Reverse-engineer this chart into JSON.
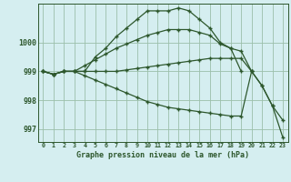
{
  "title": "Graphe pression niveau de la mer (hPa)",
  "bg_color": "#d5eef0",
  "line_color": "#2d572c",
  "grid_color": "#9bbfaa",
  "xlim": [
    -0.5,
    23.5
  ],
  "ylim": [
    996.55,
    1001.35
  ],
  "yticks": [
    997,
    998,
    999,
    1000
  ],
  "xticks": [
    0,
    1,
    2,
    3,
    4,
    5,
    6,
    7,
    8,
    9,
    10,
    11,
    12,
    13,
    14,
    15,
    16,
    17,
    18,
    19,
    20,
    21,
    22,
    23
  ],
  "series": [
    [
      999.0,
      998.9,
      999.0,
      999.0,
      999.0,
      999.5,
      999.8,
      1000.2,
      1000.5,
      1000.8,
      1001.1,
      1001.1,
      1001.1,
      1001.2,
      1001.1,
      1000.8,
      1000.5,
      1000.0,
      999.8,
      999.0,
      null,
      null,
      null,
      null
    ],
    [
      999.0,
      998.9,
      999.0,
      999.0,
      999.2,
      999.4,
      999.6,
      999.8,
      999.95,
      1000.1,
      1000.25,
      1000.35,
      1000.45,
      1000.45,
      1000.45,
      1000.35,
      1000.25,
      999.95,
      999.8,
      999.7,
      999.0,
      null,
      null,
      null
    ],
    [
      999.0,
      998.9,
      999.0,
      999.0,
      999.0,
      999.0,
      999.0,
      999.0,
      999.05,
      999.1,
      999.15,
      999.2,
      999.25,
      999.3,
      999.35,
      999.4,
      999.45,
      999.45,
      999.45,
      999.45,
      999.0,
      998.5,
      997.8,
      997.3
    ],
    [
      999.0,
      998.9,
      999.0,
      999.0,
      998.85,
      998.7,
      998.55,
      998.4,
      998.25,
      998.1,
      997.95,
      997.85,
      997.75,
      997.7,
      997.65,
      997.6,
      997.55,
      997.5,
      997.45,
      997.45,
      999.0,
      998.5,
      997.8,
      996.7
    ]
  ]
}
